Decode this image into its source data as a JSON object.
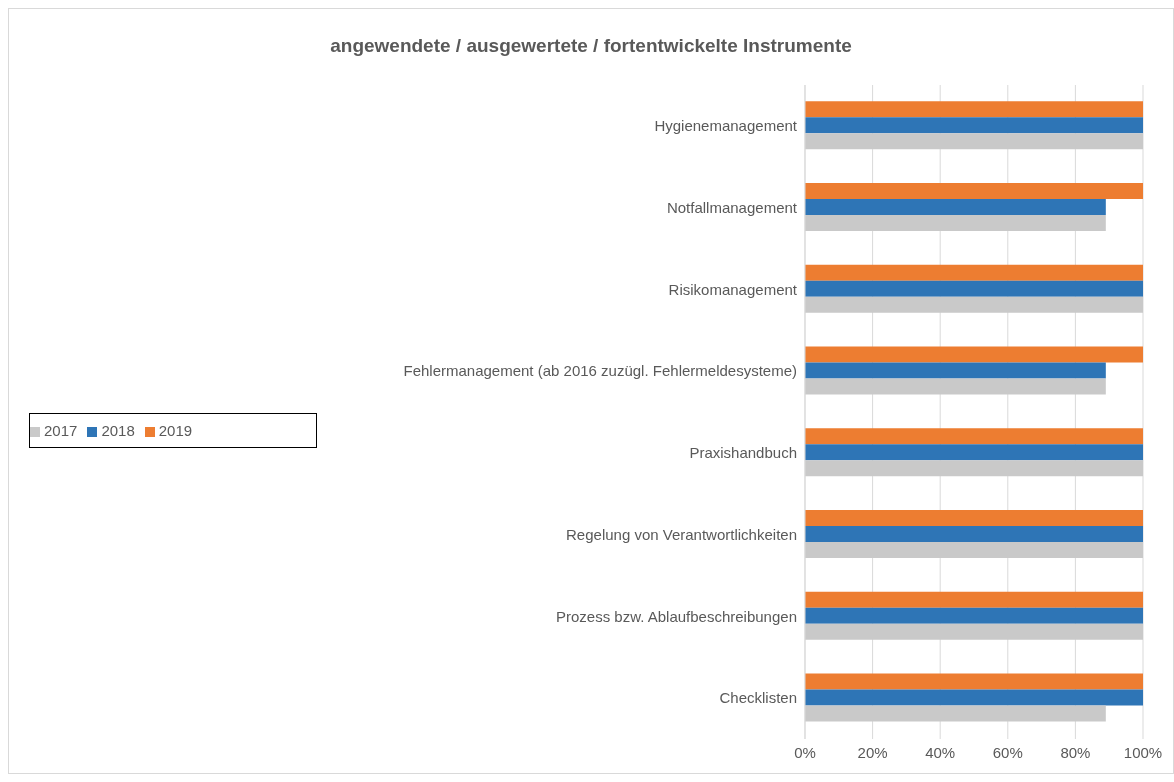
{
  "chart_data": {
    "type": "bar",
    "orientation": "horizontal",
    "title": "angewendete / ausgewertete / fortentwickelte Instrumente",
    "categories": [
      "Hygienemanagement",
      "Notfallmanagement",
      "Risikomanagement",
      "Fehlermanagement (ab 2016 zuzügl. Fehlermeldesysteme)",
      "Praxishandbuch",
      "Regelung von Verantwortlichkeiten",
      "Prozess bzw. Ablaufbeschreibungen",
      "Checklisten"
    ],
    "series": [
      {
        "name": "2019",
        "color": "#ed7d31",
        "values": [
          100,
          100,
          100,
          100,
          100,
          100,
          100,
          100
        ]
      },
      {
        "name": "2018",
        "color": "#2e75b6",
        "values": [
          100,
          89,
          100,
          89,
          100,
          100,
          100,
          100
        ]
      },
      {
        "name": "2017",
        "color": "#c9c9c9",
        "values": [
          100,
          89,
          100,
          89,
          100,
          100,
          100,
          89
        ]
      }
    ],
    "xlim": [
      0,
      100
    ],
    "xticks": [
      {
        "value": 0,
        "label": "0%"
      },
      {
        "value": 20,
        "label": "20%"
      },
      {
        "value": 40,
        "label": "40%"
      },
      {
        "value": 60,
        "label": "60%"
      },
      {
        "value": 80,
        "label": "80%"
      },
      {
        "value": 100,
        "label": "100%"
      }
    ],
    "grid": "x",
    "legend": "left"
  }
}
